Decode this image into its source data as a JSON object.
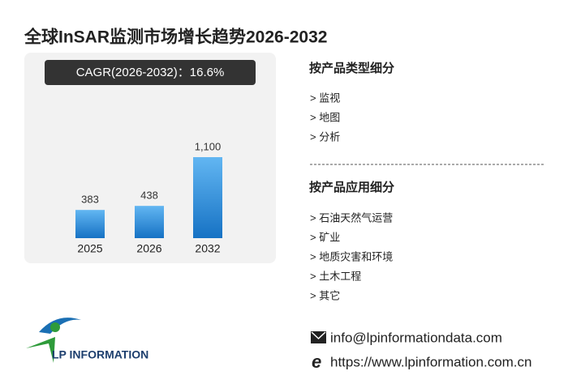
{
  "chart_data": {
    "type": "bar",
    "title": "全球InSAR监测市场增长趋势2026-2032",
    "subtitle": "CAGR(2026-2032)：16.6%",
    "categories": [
      "2025",
      "2026",
      "2032"
    ],
    "values": [
      383,
      438,
      1100
    ],
    "value_labels": [
      "383",
      "438",
      "1,100"
    ],
    "color": "#2a8ee0"
  },
  "sections": [
    {
      "title": "按产品类型细分",
      "items": [
        "> 监视",
        "> 地图",
        "> 分析"
      ]
    },
    {
      "title": "按产品应用细分",
      "items": [
        "> 石油天然气运营",
        "> 矿业",
        "> 地质灾害和环境",
        "> 土木工程",
        "> 其它"
      ]
    }
  ],
  "contact": {
    "email": "info@lpinformationdata.com",
    "website": "https://www.lpinformation.com.cn"
  },
  "logo": "LP INFORMATION"
}
